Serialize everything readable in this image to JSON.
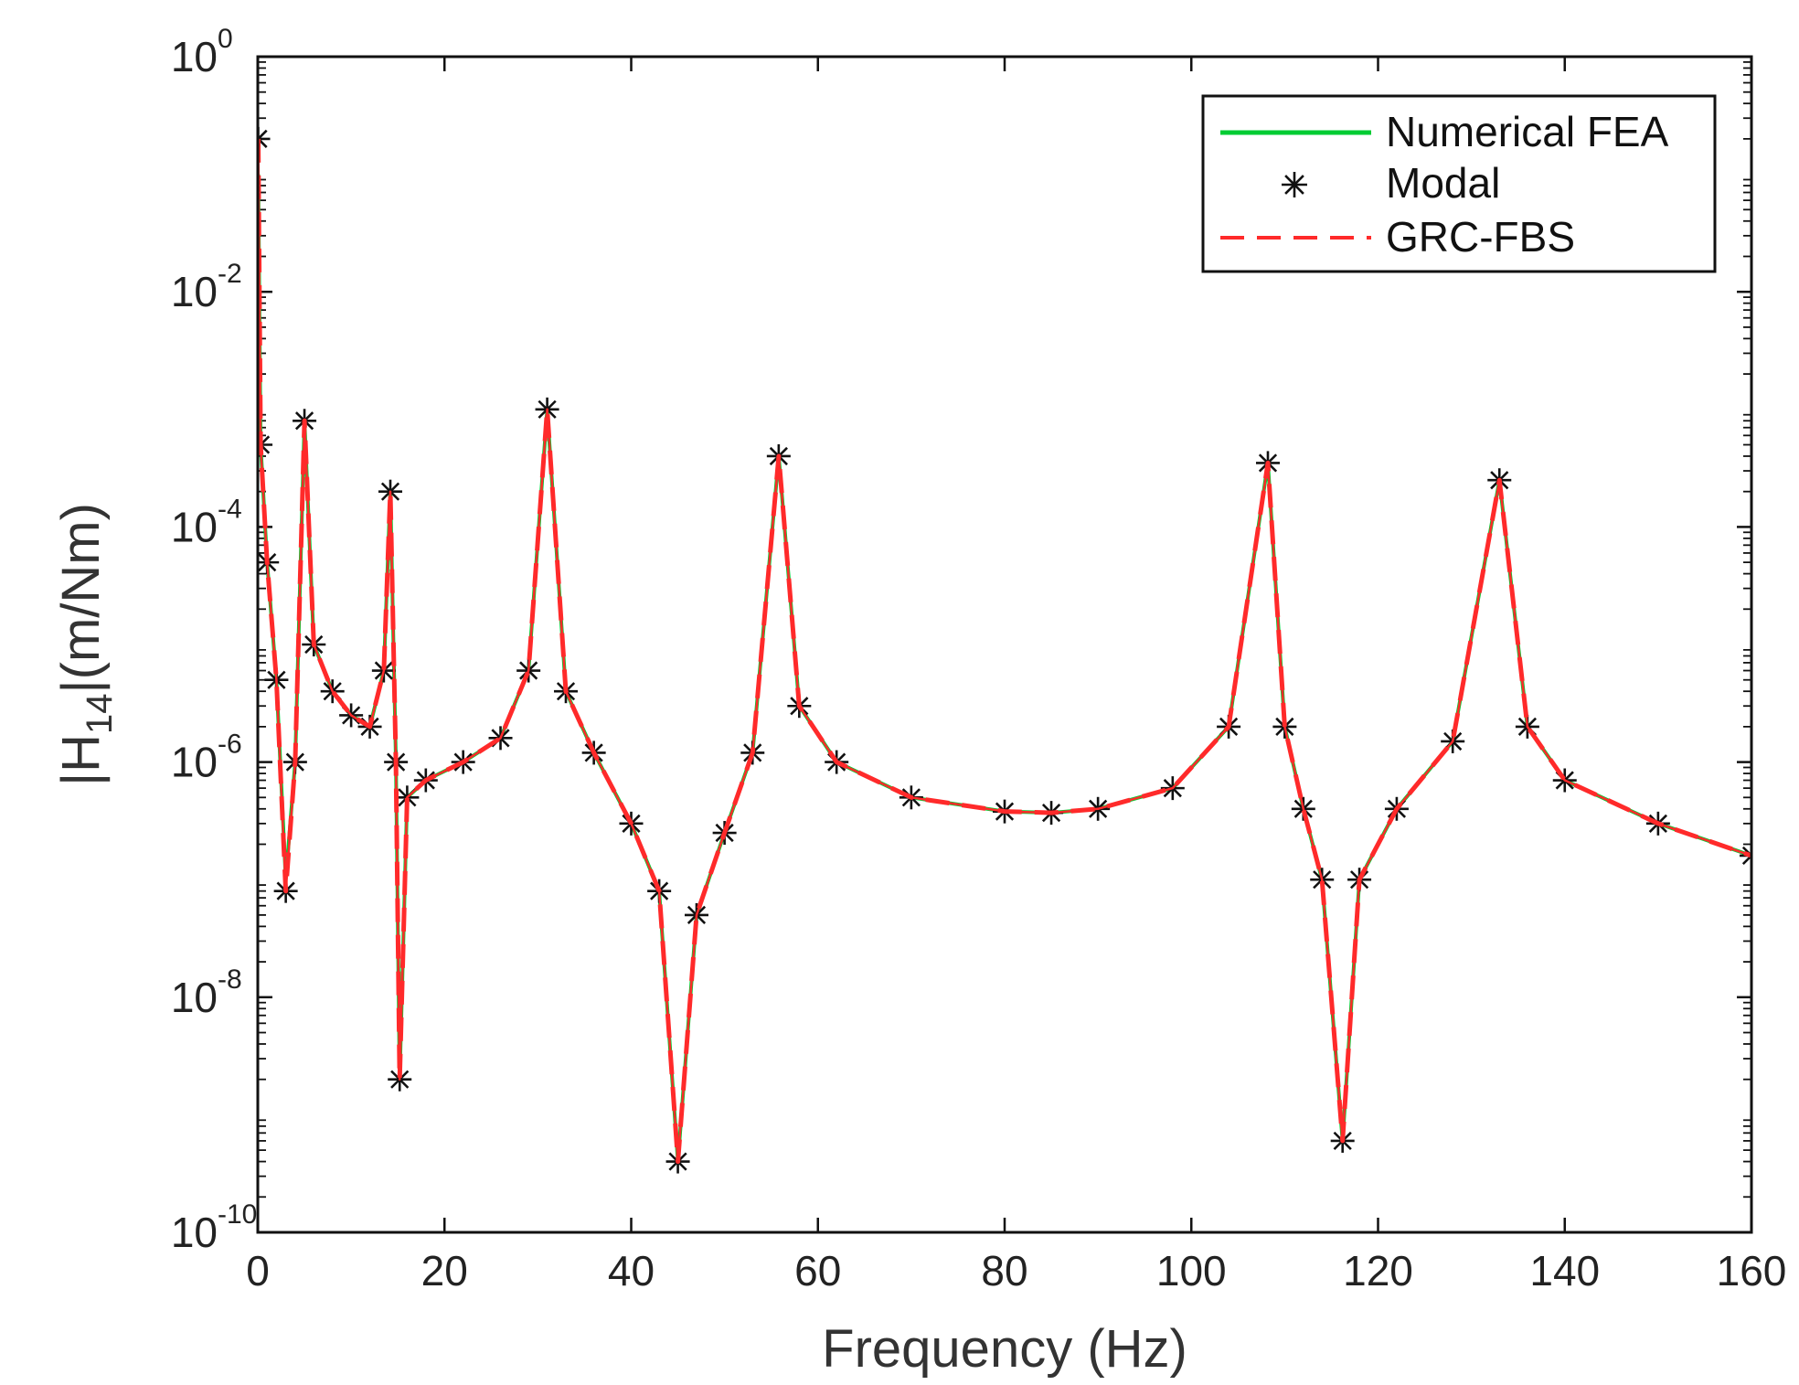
{
  "chart_data": {
    "type": "line",
    "title": "",
    "xlabel": "Frequency (Hz)",
    "ylabel": {
      "prefix": "|H",
      "subscript": "14",
      "suffix": "|(m/Nm)"
    },
    "xlim": [
      0,
      160
    ],
    "ylim": [
      1e-10,
      1
    ],
    "yscale": "log",
    "xticks": [
      0,
      20,
      40,
      60,
      80,
      100,
      120,
      140,
      160
    ],
    "xtick_labels": [
      "0",
      "20",
      "40",
      "60",
      "80",
      "100",
      "120",
      "140",
      "160"
    ],
    "yticks": [
      {
        "base": "10",
        "exp": "-10",
        "value": 1e-10
      },
      {
        "base": "10",
        "exp": "-8",
        "value": 1e-08
      },
      {
        "base": "10",
        "exp": "-6",
        "value": 1e-06
      },
      {
        "base": "10",
        "exp": "-4",
        "value": 0.0001
      },
      {
        "base": "10",
        "exp": "-2",
        "value": 0.01
      },
      {
        "base": "10",
        "exp": "0",
        "value": 1
      }
    ],
    "legend": {
      "position": "top-right",
      "entries": [
        {
          "label": "Numerical FEA",
          "style": "solid",
          "color": "#00cc33"
        },
        {
          "label": "Modal",
          "style": "asterisk",
          "color": "#111111"
        },
        {
          "label": "GRC-FBS",
          "style": "dashed",
          "color": "#ff2a2a"
        }
      ]
    },
    "series": [
      {
        "name": "Numerical FEA",
        "color": "#00cc33",
        "x": [
          0.05,
          0.3,
          1,
          2,
          3,
          4,
          5,
          6,
          8,
          10,
          12,
          13.5,
          14.2,
          14.8,
          15.2,
          16,
          18,
          22,
          26,
          29,
          31,
          33,
          36,
          40,
          43,
          45,
          47,
          50,
          53,
          55.8,
          58,
          62,
          70,
          80,
          85,
          90,
          98,
          104,
          108.2,
          110,
          112,
          114,
          116.2,
          118,
          122,
          128,
          133,
          136,
          140,
          150,
          160
        ],
        "y": [
          0.1,
          0.0005,
          5e-05,
          5e-06,
          1e-07,
          1e-06,
          0.0008,
          1e-05,
          4e-06,
          2.5e-06,
          2e-06,
          6e-06,
          0.0002,
          1e-06,
          2e-09,
          5e-07,
          7e-07,
          1e-06,
          1.6e-06,
          6e-06,
          0.001,
          4e-06,
          1.2e-06,
          3e-07,
          8e-08,
          4e-10,
          5e-08,
          2.5e-07,
          1.2e-06,
          0.0004,
          3e-06,
          1e-06,
          5e-07,
          3.8e-07,
          3.7e-07,
          4e-07,
          6e-07,
          2e-06,
          0.00035,
          2e-06,
          4e-07,
          1e-07,
          6e-10,
          1e-07,
          4e-07,
          1.5e-06,
          0.00025,
          2e-06,
          7e-07,
          3e-07,
          1.6e-07
        ]
      },
      {
        "name": "Modal",
        "color": "#111111",
        "x": [
          0.05,
          0.3,
          1,
          2,
          3,
          4,
          5,
          6,
          8,
          10,
          12,
          13.5,
          14.2,
          14.8,
          15.2,
          16,
          18,
          22,
          26,
          29,
          31,
          33,
          36,
          40,
          43,
          45,
          47,
          50,
          53,
          55.8,
          58,
          62,
          70,
          80,
          85,
          90,
          98,
          104,
          108.2,
          110,
          112,
          114,
          116.2,
          118,
          122,
          128,
          133,
          136,
          140,
          150,
          160
        ],
        "y": [
          0.2,
          0.0005,
          5e-05,
          5e-06,
          8e-08,
          1e-06,
          0.0008,
          1e-05,
          4e-06,
          2.5e-06,
          2e-06,
          6e-06,
          0.0002,
          1e-06,
          2e-09,
          5e-07,
          7e-07,
          1e-06,
          1.6e-06,
          6e-06,
          0.001,
          4e-06,
          1.2e-06,
          3e-07,
          8e-08,
          4e-10,
          5e-08,
          2.5e-07,
          1.2e-06,
          0.0004,
          3e-06,
          1e-06,
          5e-07,
          3.8e-07,
          3.7e-07,
          4e-07,
          6e-07,
          2e-06,
          0.00035,
          2e-06,
          4e-07,
          1e-07,
          6e-10,
          1e-07,
          4e-07,
          1.5e-06,
          0.00025,
          2e-06,
          7e-07,
          3e-07,
          1.6e-07
        ]
      },
      {
        "name": "GRC-FBS",
        "color": "#ff2a2a",
        "x": [
          0.05,
          0.3,
          1,
          2,
          3,
          4,
          5,
          6,
          8,
          10,
          12,
          13.5,
          14.2,
          14.8,
          15.2,
          16,
          18,
          22,
          26,
          29,
          31,
          33,
          36,
          40,
          43,
          45,
          47,
          50,
          53,
          55.8,
          58,
          62,
          70,
          80,
          85,
          90,
          98,
          104,
          108.2,
          110,
          112,
          114,
          116.2,
          118,
          122,
          128,
          133,
          136,
          140,
          150,
          160
        ],
        "y": [
          0.2,
          0.0005,
          5e-05,
          5e-06,
          8e-08,
          1e-06,
          0.0008,
          1e-05,
          4e-06,
          2.5e-06,
          2e-06,
          6e-06,
          0.0002,
          1e-06,
          2e-09,
          5e-07,
          7e-07,
          1e-06,
          1.6e-06,
          6e-06,
          0.001,
          4e-06,
          1.2e-06,
          3e-07,
          8e-08,
          4e-10,
          5e-08,
          2.5e-07,
          1.2e-06,
          0.0004,
          3e-06,
          1e-06,
          5e-07,
          3.8e-07,
          3.7e-07,
          4e-07,
          6e-07,
          2e-06,
          0.00035,
          2e-06,
          4e-07,
          1e-07,
          6e-10,
          1e-07,
          4e-07,
          1.5e-06,
          0.00025,
          2e-06,
          7e-07,
          3e-07,
          1.6e-07
        ]
      }
    ]
  }
}
